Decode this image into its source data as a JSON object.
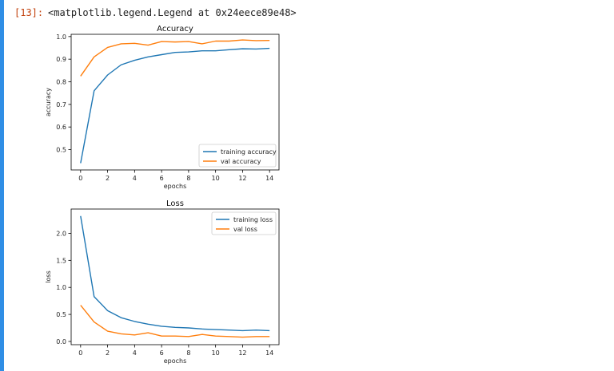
{
  "cell": {
    "prompt": "[13]:",
    "output_text": "<matplotlib.legend.Legend at 0x24eece89e48>"
  },
  "colors": {
    "cell_bar": "#2f8ee5",
    "series_training": "#1f77b4",
    "series_val": "#ff7f0e"
  },
  "chart_data": [
    {
      "type": "line",
      "title": "Accuracy",
      "xlabel": "epochs",
      "ylabel": "accuracy",
      "xlim": [
        -0.7,
        14.7
      ],
      "ylim": [
        0.41,
        1.01
      ],
      "xticks": [
        0,
        2,
        4,
        6,
        8,
        10,
        12,
        14
      ],
      "yticks": [
        0.5,
        0.6,
        0.7,
        0.8,
        0.9,
        1.0
      ],
      "ytick_labels": [
        "0.5",
        "0.6",
        "0.7",
        "0.8",
        "0.9",
        "1.0"
      ],
      "legend_position": "lower-right",
      "x": [
        0,
        1,
        2,
        3,
        4,
        5,
        6,
        7,
        8,
        9,
        10,
        11,
        12,
        13,
        14
      ],
      "series": [
        {
          "name": "training accuracy",
          "color": "#1f77b4",
          "values": [
            0.44,
            0.76,
            0.83,
            0.875,
            0.895,
            0.91,
            0.92,
            0.93,
            0.932,
            0.937,
            0.937,
            0.942,
            0.946,
            0.945,
            0.948
          ]
        },
        {
          "name": "val accuracy",
          "color": "#ff7f0e",
          "values": [
            0.825,
            0.91,
            0.952,
            0.968,
            0.97,
            0.962,
            0.978,
            0.976,
            0.978,
            0.968,
            0.98,
            0.98,
            0.985,
            0.982,
            0.983
          ]
        }
      ]
    },
    {
      "type": "line",
      "title": "Loss",
      "xlabel": "epochs",
      "ylabel": "loss",
      "xlim": [
        -0.7,
        14.7
      ],
      "ylim": [
        -0.06,
        2.45
      ],
      "xticks": [
        0,
        2,
        4,
        6,
        8,
        10,
        12,
        14
      ],
      "yticks": [
        0.0,
        0.5,
        1.0,
        1.5,
        2.0
      ],
      "ytick_labels": [
        "0.0",
        "0.5",
        "1.0",
        "1.5",
        "2.0"
      ],
      "legend_position": "upper-right",
      "x": [
        0,
        1,
        2,
        3,
        4,
        5,
        6,
        7,
        8,
        9,
        10,
        11,
        12,
        13,
        14
      ],
      "series": [
        {
          "name": "training loss",
          "color": "#1f77b4",
          "values": [
            2.32,
            0.83,
            0.57,
            0.44,
            0.37,
            0.32,
            0.28,
            0.26,
            0.25,
            0.23,
            0.22,
            0.21,
            0.2,
            0.21,
            0.2
          ]
        },
        {
          "name": "val loss",
          "color": "#ff7f0e",
          "values": [
            0.67,
            0.36,
            0.19,
            0.14,
            0.12,
            0.16,
            0.1,
            0.1,
            0.09,
            0.13,
            0.1,
            0.09,
            0.08,
            0.09,
            0.09
          ]
        }
      ]
    }
  ]
}
